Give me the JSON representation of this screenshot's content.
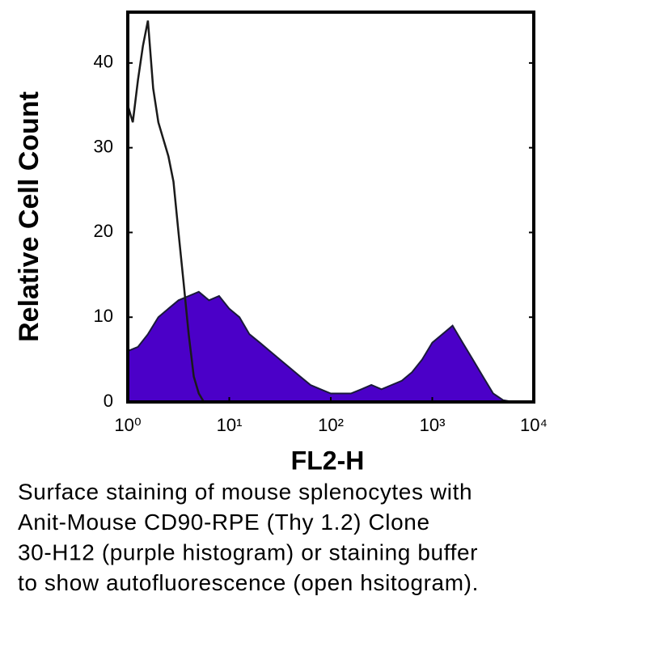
{
  "chart_data": {
    "type": "histogram-line",
    "x_label": "FL2-H",
    "y_label": "Relative Cell Count",
    "xscale": "log",
    "xlim": [
      1,
      10000
    ],
    "xticks": [
      {
        "value": 1,
        "label": "10⁰"
      },
      {
        "value": 10,
        "label": "10¹"
      },
      {
        "value": 100,
        "label": "10²"
      },
      {
        "value": 1000,
        "label": "10³"
      },
      {
        "value": 10000,
        "label": "10⁴"
      }
    ],
    "ylim": [
      0,
      46
    ],
    "yticks": [
      0,
      10,
      20,
      30,
      40
    ],
    "series": [
      {
        "color": "#4b00c8",
        "filled": true,
        "x": [
          1,
          1.26,
          1.58,
          2,
          2.51,
          3.16,
          3.98,
          5.01,
          6.31,
          7.94,
          10,
          12.6,
          15.8,
          20,
          25.1,
          31.6,
          39.8,
          50.1,
          63.1,
          79.4,
          100,
          126,
          158,
          200,
          251,
          316,
          398,
          501,
          631,
          794,
          1000,
          1259,
          1585,
          1995,
          2512,
          3162,
          3981,
          5012,
          6310
        ],
        "values": [
          6,
          6.5,
          8,
          10,
          11,
          12,
          12.5,
          13,
          12,
          12.5,
          11,
          10,
          8,
          7,
          6,
          5,
          4,
          3,
          2,
          1.5,
          1,
          1,
          1,
          1.5,
          2,
          1.5,
          2,
          2.5,
          3.5,
          5,
          7,
          8,
          9,
          7,
          5,
          3,
          1,
          0.2,
          0
        ]
      },
      {
        "color": "#1a1a1a",
        "filled": false,
        "x": [
          1,
          1.12,
          1.26,
          1.41,
          1.58,
          1.78,
          2,
          2.24,
          2.51,
          2.82,
          3.16,
          3.55,
          3.98,
          4.47,
          5.01,
          5.62
        ],
        "values": [
          35,
          33,
          38,
          42,
          45,
          37,
          33,
          31,
          29,
          26,
          20,
          14,
          8,
          3,
          1,
          0
        ]
      }
    ],
    "caption": [
      "Surface staining of mouse splenocytes with",
      "Anit-Mouse CD90-RPE (Thy 1.2) Clone",
      "30-H12 (purple histogram) or staining buffer",
      "to show autofluorescence (open hsitogram)."
    ]
  }
}
